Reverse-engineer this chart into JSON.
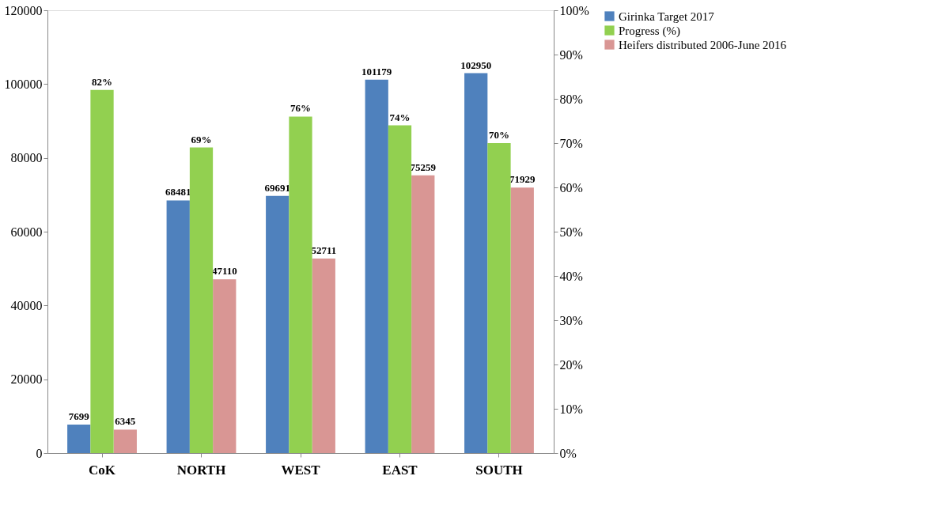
{
  "chart_data": {
    "type": "bar",
    "categories": [
      "CoK",
      "NORTH",
      "WEST",
      "EAST",
      "SOUTH"
    ],
    "series": [
      {
        "name": "Girinka Target 2017",
        "color": "#4f81bd",
        "values": [
          7699,
          68481,
          69691,
          101179,
          102950
        ],
        "value_labels": [
          "7699",
          "68481",
          "69691",
          "101179",
          "102950"
        ]
      },
      {
        "name": "Progress (%)",
        "color": "#92d050",
        "axis": "y2",
        "values": [
          82,
          69,
          76,
          74,
          70
        ],
        "value_labels": [
          "82%",
          "69%",
          "76%",
          "74%",
          "70%"
        ]
      },
      {
        "name": "Heifers distributed 2006-June 2016",
        "color": "#d99694",
        "values": [
          6345,
          47110,
          52711,
          75259,
          71929
        ],
        "value_labels": [
          "6345",
          "47110",
          "52711",
          "75259",
          "71929"
        ]
      }
    ],
    "ylim": [
      0,
      120000
    ],
    "yticks": [
      0,
      20000,
      40000,
      60000,
      80000,
      100000,
      120000
    ],
    "y2lim": [
      0,
      100
    ],
    "y2ticks": [
      {
        "value": 0,
        "label": "0%"
      },
      {
        "value": 10,
        "label": "10%"
      },
      {
        "value": 20,
        "label": "20%"
      },
      {
        "value": 30,
        "label": "30%"
      },
      {
        "value": 40,
        "label": "40%"
      },
      {
        "value": 50,
        "label": "50%"
      },
      {
        "value": 60,
        "label": "60%"
      },
      {
        "value": 70,
        "label": "70%"
      },
      {
        "value": 80,
        "label": "80%"
      },
      {
        "value": 90,
        "label": "90%"
      },
      {
        "value": 100,
        "label": "100%"
      }
    ],
    "grid": false,
    "legend": "right"
  }
}
